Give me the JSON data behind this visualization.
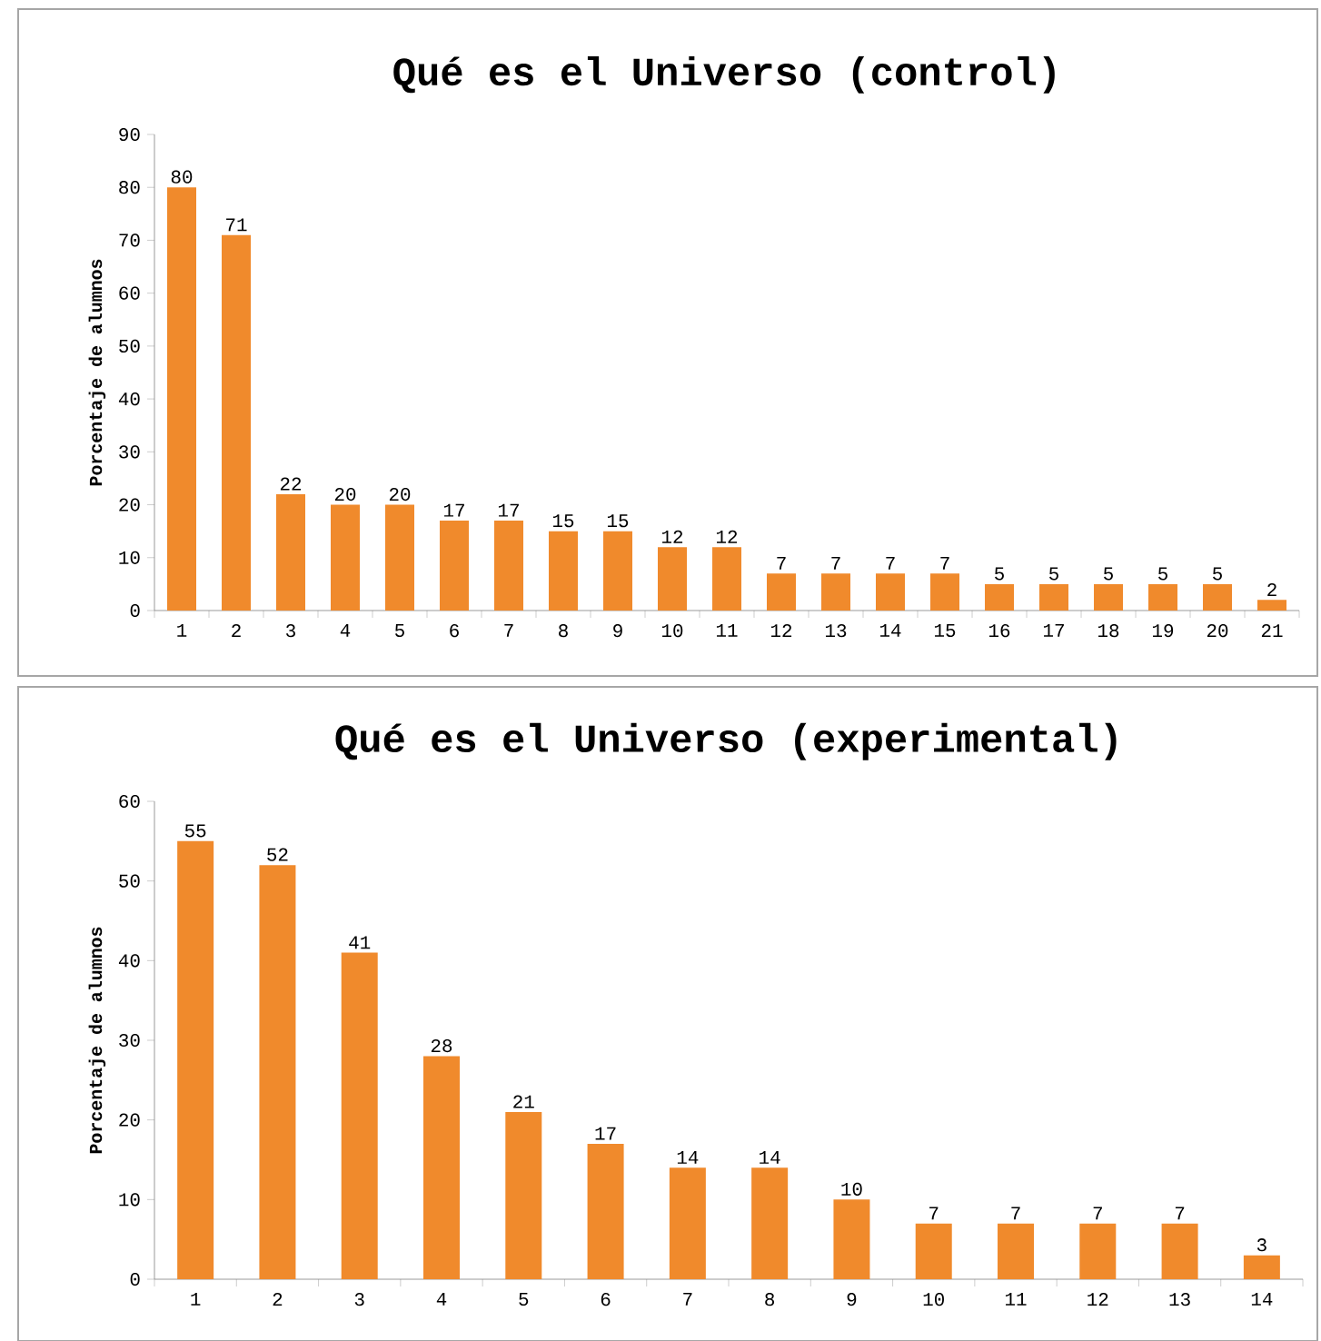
{
  "chart_data": [
    {
      "type": "bar",
      "title": "Qué es el Universo (control)",
      "ylabel": "Porcentaje de alumnos",
      "categories": [
        "1",
        "2",
        "3",
        "4",
        "5",
        "6",
        "7",
        "8",
        "9",
        "10",
        "11",
        "12",
        "13",
        "14",
        "15",
        "16",
        "17",
        "18",
        "19",
        "20",
        "21"
      ],
      "values": [
        80,
        71,
        22,
        20,
        20,
        17,
        17,
        15,
        15,
        12,
        12,
        7,
        7,
        7,
        7,
        5,
        5,
        5,
        5,
        5,
        2
      ],
      "color": "#f08a2c",
      "ylim": [
        0,
        90
      ],
      "yticks": [
        0,
        10,
        20,
        30,
        40,
        50,
        60,
        70,
        80,
        90
      ],
      "data_labels": true
    },
    {
      "type": "bar",
      "title": "Qué es el Universo (experimental)",
      "ylabel": "Porcentaje de alumnos",
      "categories": [
        "1",
        "2",
        "3",
        "4",
        "5",
        "6",
        "7",
        "8",
        "9",
        "10",
        "11",
        "12",
        "13",
        "14"
      ],
      "values": [
        55,
        52,
        41,
        28,
        21,
        17,
        14,
        14,
        10,
        7,
        7,
        7,
        7,
        3
      ],
      "color": "#f08a2c",
      "ylim": [
        0,
        60
      ],
      "yticks": [
        0,
        10,
        20,
        30,
        40,
        50,
        60
      ],
      "data_labels": true
    }
  ]
}
